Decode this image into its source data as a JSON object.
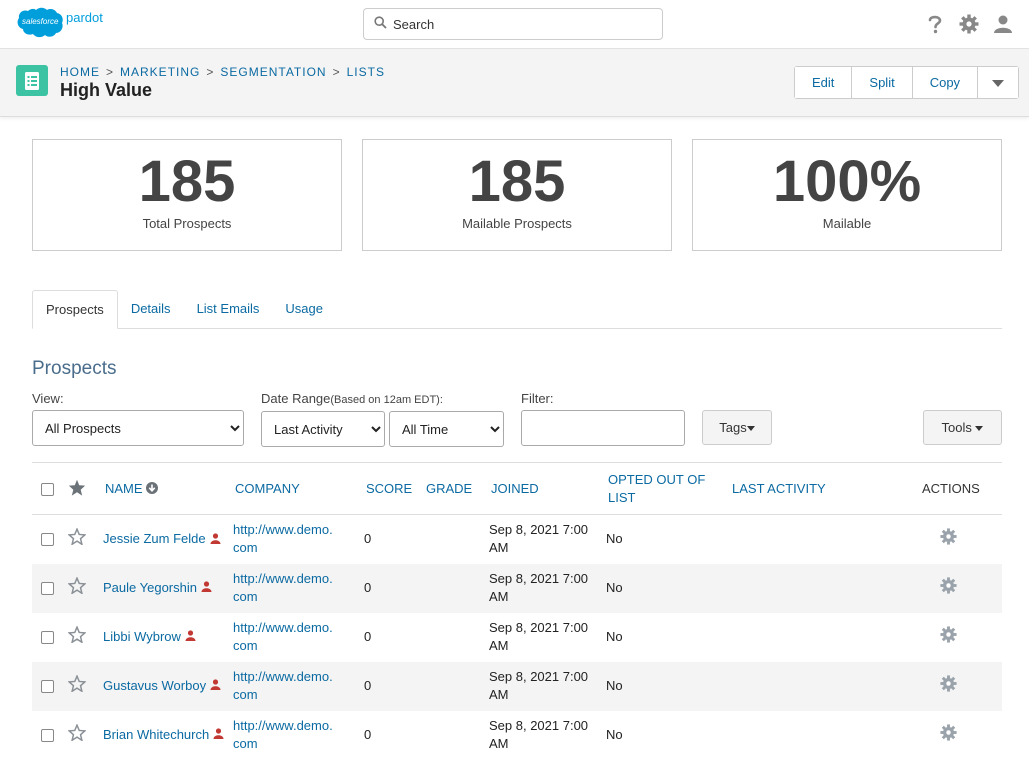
{
  "brand": {
    "cloud_text": "salesforce",
    "product": "pardot",
    "accent": "#009edb"
  },
  "search": {
    "placeholder": "Search"
  },
  "top_icons": [
    "help-icon",
    "gear-icon",
    "user-icon"
  ],
  "breadcrumb": {
    "items": [
      "HOME",
      "MARKETING",
      "SEGMENTATION",
      "LISTS"
    ],
    "separator": ">"
  },
  "page": {
    "title": "High Value",
    "icon_color": "#3bc3a3"
  },
  "actions": {
    "edit": "Edit",
    "split": "Split",
    "copy": "Copy"
  },
  "stats": [
    {
      "value": "185",
      "label": "Total Prospects"
    },
    {
      "value": "185",
      "label": "Mailable Prospects"
    },
    {
      "value": "100%",
      "label": "Mailable"
    }
  ],
  "tabs": [
    "Prospects",
    "Details",
    "List Emails",
    "Usage"
  ],
  "section_title": "Prospects",
  "filters": {
    "view_label": "View:",
    "view_value": "All Prospects",
    "date_label": "Date Range",
    "date_note": "(Based on 12am EDT):",
    "date_field": "Last Activity",
    "date_range": "All Time",
    "filter_label": "Filter:",
    "tags": "Tags",
    "tools": "Tools"
  },
  "table": {
    "headers": {
      "name": "NAME",
      "company": "COMPANY",
      "score": "SCORE",
      "grade": "GRADE",
      "joined": "JOINED",
      "opted_out": "OPTED OUT OF LIST",
      "last_activity": "LAST ACTIVITY",
      "actions": "ACTIONS"
    },
    "rows": [
      {
        "name": "Jessie Zum Felde",
        "company": "http://www.demo.com",
        "company_l1": "http://www.demo.",
        "company_l2": "com",
        "score": "0",
        "grade": "",
        "joined_l1": "Sep 8, 2021 7:00",
        "joined_l2": "AM",
        "opted_out": "No",
        "last_activity": ""
      },
      {
        "name": "Paule Yegorshin",
        "company": "http://www.demo.com",
        "company_l1": "http://www.demo.",
        "company_l2": "com",
        "score": "0",
        "grade": "",
        "joined_l1": "Sep 8, 2021 7:00",
        "joined_l2": "AM",
        "opted_out": "No",
        "last_activity": ""
      },
      {
        "name": "Libbi Wybrow",
        "company": "http://www.demo.com",
        "company_l1": "http://www.demo.",
        "company_l2": "com",
        "score": "0",
        "grade": "",
        "joined_l1": "Sep 8, 2021 7:00",
        "joined_l2": "AM",
        "opted_out": "No",
        "last_activity": ""
      },
      {
        "name": "Gustavus Worboy",
        "company": "http://www.demo.com",
        "company_l1": "http://www.demo.",
        "company_l2": "com",
        "score": "0",
        "grade": "",
        "joined_l1": "Sep 8, 2021 7:00",
        "joined_l2": "AM",
        "opted_out": "No",
        "last_activity": ""
      },
      {
        "name": "Brian Whitechurch",
        "company": "http://www.demo.com",
        "company_l1": "http://www.demo.",
        "company_l2": "com",
        "score": "0",
        "grade": "",
        "joined_l1": "Sep 8, 2021 7:00",
        "joined_l2": "AM",
        "opted_out": "No",
        "last_activity": ""
      }
    ]
  },
  "colors": {
    "link": "#0b6aa2",
    "person_icon": "#c23934",
    "gear_icon": "#9aa3ab"
  }
}
